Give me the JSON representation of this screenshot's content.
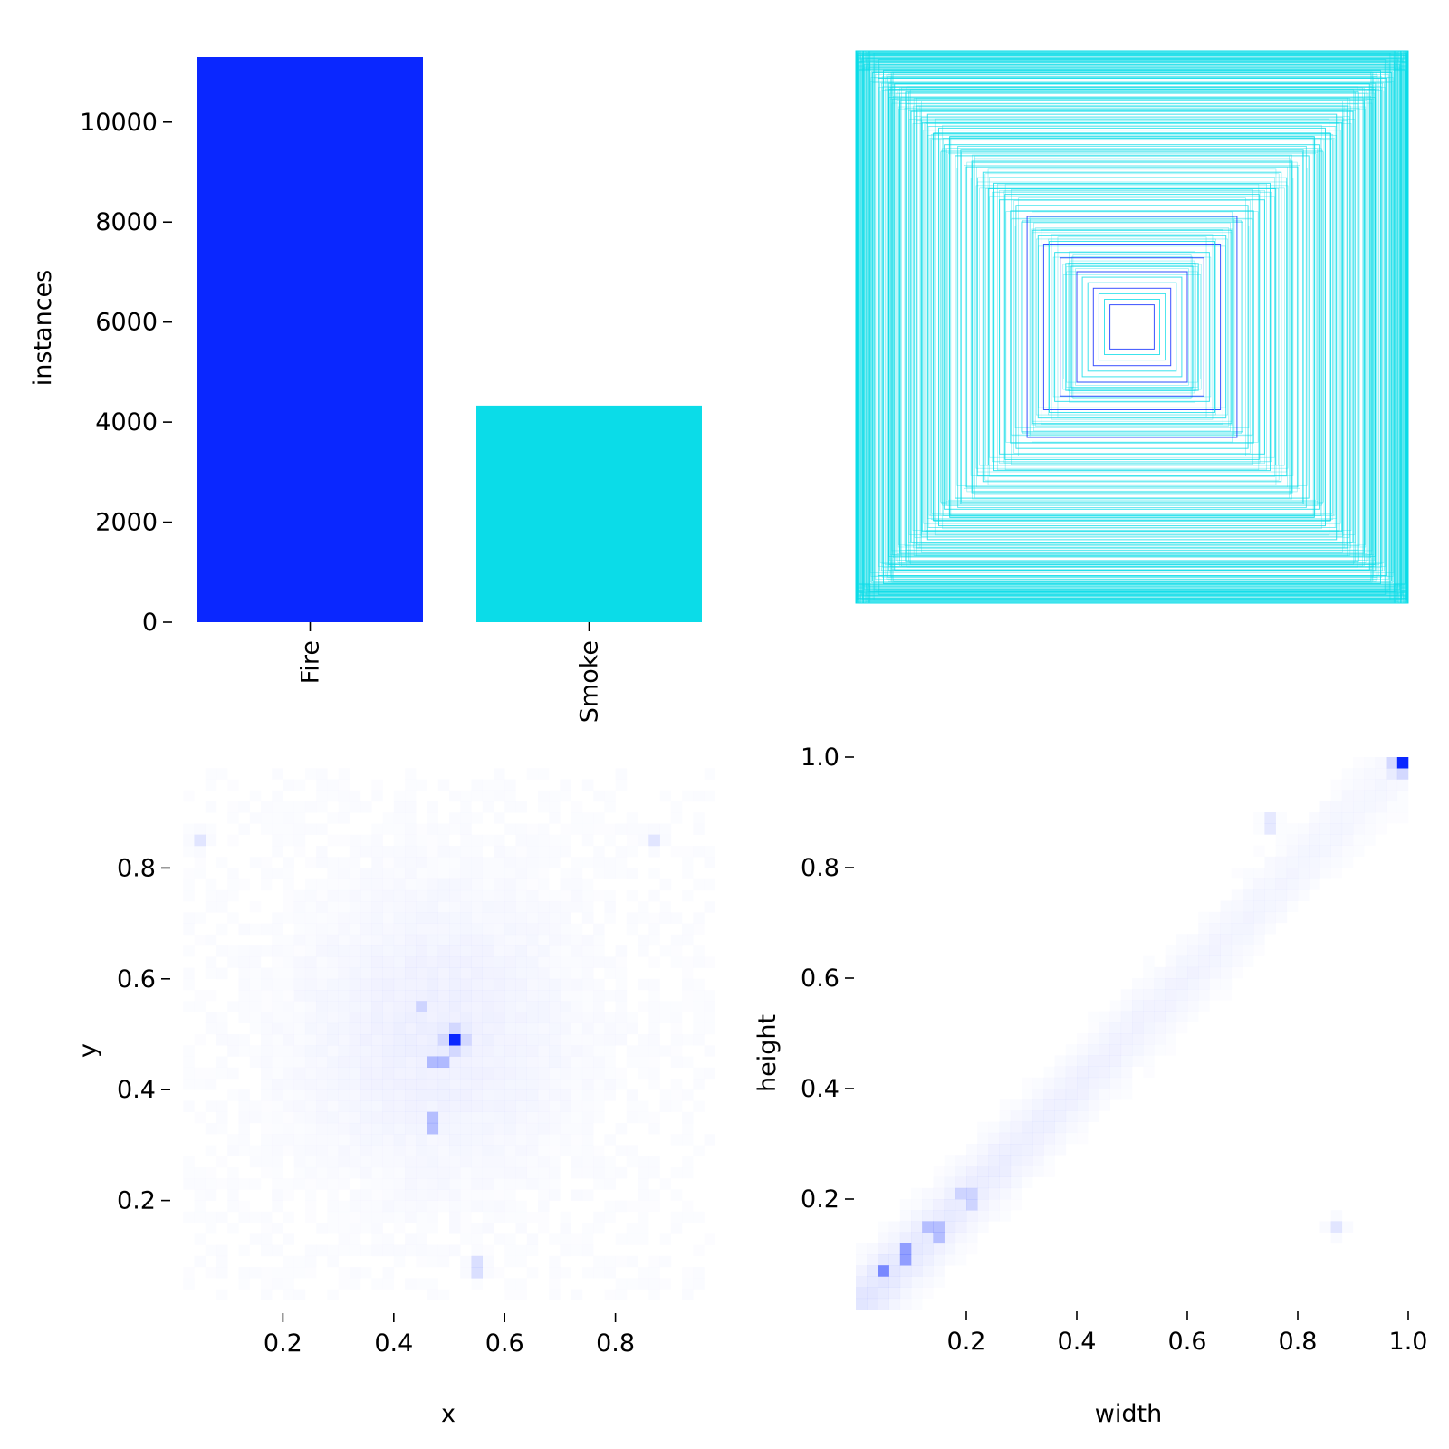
{
  "chart_data": [
    {
      "type": "bar",
      "panel": "class-instances",
      "categories": [
        "Fire",
        "Smoke"
      ],
      "values": [
        11300,
        4330
      ],
      "colors": [
        "#0a27ff",
        "#0bdce8"
      ],
      "ylabel": "instances",
      "xlabel": "",
      "ylim": [
        0,
        11300
      ],
      "yticks": [
        0,
        2000,
        4000,
        6000,
        8000,
        10000
      ],
      "ytick_labels": [
        "0",
        "2000",
        "4000",
        "6000",
        "8000",
        "10000"
      ]
    },
    {
      "type": "scatter",
      "panel": "box-outlines",
      "description": "Overlaid bounding box outlines centred at (0.5, 0.5), sized by width/height",
      "colors": [
        "#0bdce8",
        "#0a27ff"
      ],
      "boxes": [
        {
          "w": 1.0,
          "h": 1.0
        },
        {
          "w": 0.99,
          "h": 0.99
        },
        {
          "w": 0.98,
          "h": 0.97
        },
        {
          "w": 0.97,
          "h": 0.95
        },
        {
          "w": 0.95,
          "h": 0.96
        },
        {
          "w": 0.94,
          "h": 0.92
        },
        {
          "w": 0.92,
          "h": 0.9
        },
        {
          "w": 0.9,
          "h": 0.93
        },
        {
          "w": 0.88,
          "h": 0.86
        },
        {
          "w": 0.86,
          "h": 0.88
        },
        {
          "w": 0.84,
          "h": 0.82
        },
        {
          "w": 0.82,
          "h": 0.85
        },
        {
          "w": 0.8,
          "h": 0.78
        },
        {
          "w": 0.78,
          "h": 0.8
        },
        {
          "w": 0.76,
          "h": 0.74
        },
        {
          "w": 0.74,
          "h": 0.77
        },
        {
          "w": 0.72,
          "h": 0.7
        },
        {
          "w": 0.7,
          "h": 0.72
        },
        {
          "w": 0.68,
          "h": 0.66
        },
        {
          "w": 0.66,
          "h": 0.69
        },
        {
          "w": 0.64,
          "h": 0.62
        },
        {
          "w": 0.62,
          "h": 0.64
        },
        {
          "w": 0.6,
          "h": 0.58
        },
        {
          "w": 0.58,
          "h": 0.6
        },
        {
          "w": 0.56,
          "h": 0.54
        },
        {
          "w": 0.54,
          "h": 0.56
        },
        {
          "w": 0.52,
          "h": 0.5
        },
        {
          "w": 0.5,
          "h": 0.52
        },
        {
          "w": 0.48,
          "h": 0.46
        },
        {
          "w": 0.46,
          "h": 0.48
        },
        {
          "w": 0.44,
          "h": 0.42
        },
        {
          "w": 0.42,
          "h": 0.44
        },
        {
          "w": 0.4,
          "h": 0.38
        },
        {
          "w": 0.38,
          "h": 0.4
        },
        {
          "w": 0.36,
          "h": 0.35
        },
        {
          "w": 0.34,
          "h": 0.33
        },
        {
          "w": 0.32,
          "h": 0.3
        },
        {
          "w": 0.3,
          "h": 0.31
        },
        {
          "w": 0.28,
          "h": 0.27
        },
        {
          "w": 0.26,
          "h": 0.25
        },
        {
          "w": 0.24,
          "h": 0.23
        },
        {
          "w": 0.22,
          "h": 0.22
        },
        {
          "w": 0.2,
          "h": 0.2
        },
        {
          "w": 0.18,
          "h": 0.18
        },
        {
          "w": 0.16,
          "h": 0.16
        },
        {
          "w": 0.14,
          "h": 0.14
        },
        {
          "w": 0.12,
          "h": 0.12
        },
        {
          "w": 0.1,
          "h": 0.1
        },
        {
          "w": 0.08,
          "h": 0.08
        }
      ]
    },
    {
      "type": "heatmap",
      "panel": "xy-density",
      "xlabel": "x",
      "ylabel": "y",
      "xlim": [
        0.0,
        1.0
      ],
      "ylim": [
        0.0,
        1.0
      ],
      "xticks": [
        0.2,
        0.4,
        0.6,
        0.8
      ],
      "xtick_labels": [
        "0.2",
        "0.4",
        "0.6",
        "0.8"
      ],
      "yticks": [
        0.2,
        0.4,
        0.6,
        0.8
      ],
      "ytick_labels": [
        "0.2",
        "0.4",
        "0.6",
        "0.8"
      ],
      "color": "#0a27ff",
      "peaks": [
        {
          "x": 0.51,
          "y": 0.49,
          "density": 1.0
        },
        {
          "x": 0.48,
          "y": 0.45,
          "density": 0.32
        },
        {
          "x": 0.47,
          "y": 0.34,
          "density": 0.3
        },
        {
          "x": 0.45,
          "y": 0.55,
          "density": 0.2
        },
        {
          "x": 0.55,
          "y": 0.08,
          "density": 0.15
        },
        {
          "x": 0.05,
          "y": 0.85,
          "density": 0.12
        },
        {
          "x": 0.87,
          "y": 0.85,
          "density": 0.12
        }
      ]
    },
    {
      "type": "heatmap",
      "panel": "wh-density",
      "xlabel": "width",
      "ylabel": "height",
      "xlim": [
        0.0,
        1.0
      ],
      "ylim": [
        0.0,
        1.0
      ],
      "xticks": [
        0.2,
        0.4,
        0.6,
        0.8,
        1.0
      ],
      "xtick_labels": [
        "0.2",
        "0.4",
        "0.6",
        "0.8",
        "1.0"
      ],
      "yticks": [
        0.2,
        0.4,
        0.6,
        0.8,
        1.0
      ],
      "ytick_labels": [
        "0.2",
        "0.4",
        "0.6",
        "0.8",
        "1.0"
      ],
      "color": "#0a27ff",
      "peaks": [
        {
          "x": 0.99,
          "y": 0.99,
          "density": 1.0
        },
        {
          "x": 0.05,
          "y": 0.07,
          "density": 0.55
        },
        {
          "x": 0.09,
          "y": 0.1,
          "density": 0.45
        },
        {
          "x": 0.14,
          "y": 0.14,
          "density": 0.3
        },
        {
          "x": 0.2,
          "y": 0.2,
          "density": 0.2
        },
        {
          "x": 0.75,
          "y": 0.88,
          "density": 0.1
        },
        {
          "x": 0.87,
          "y": 0.15,
          "density": 0.12
        }
      ]
    }
  ]
}
